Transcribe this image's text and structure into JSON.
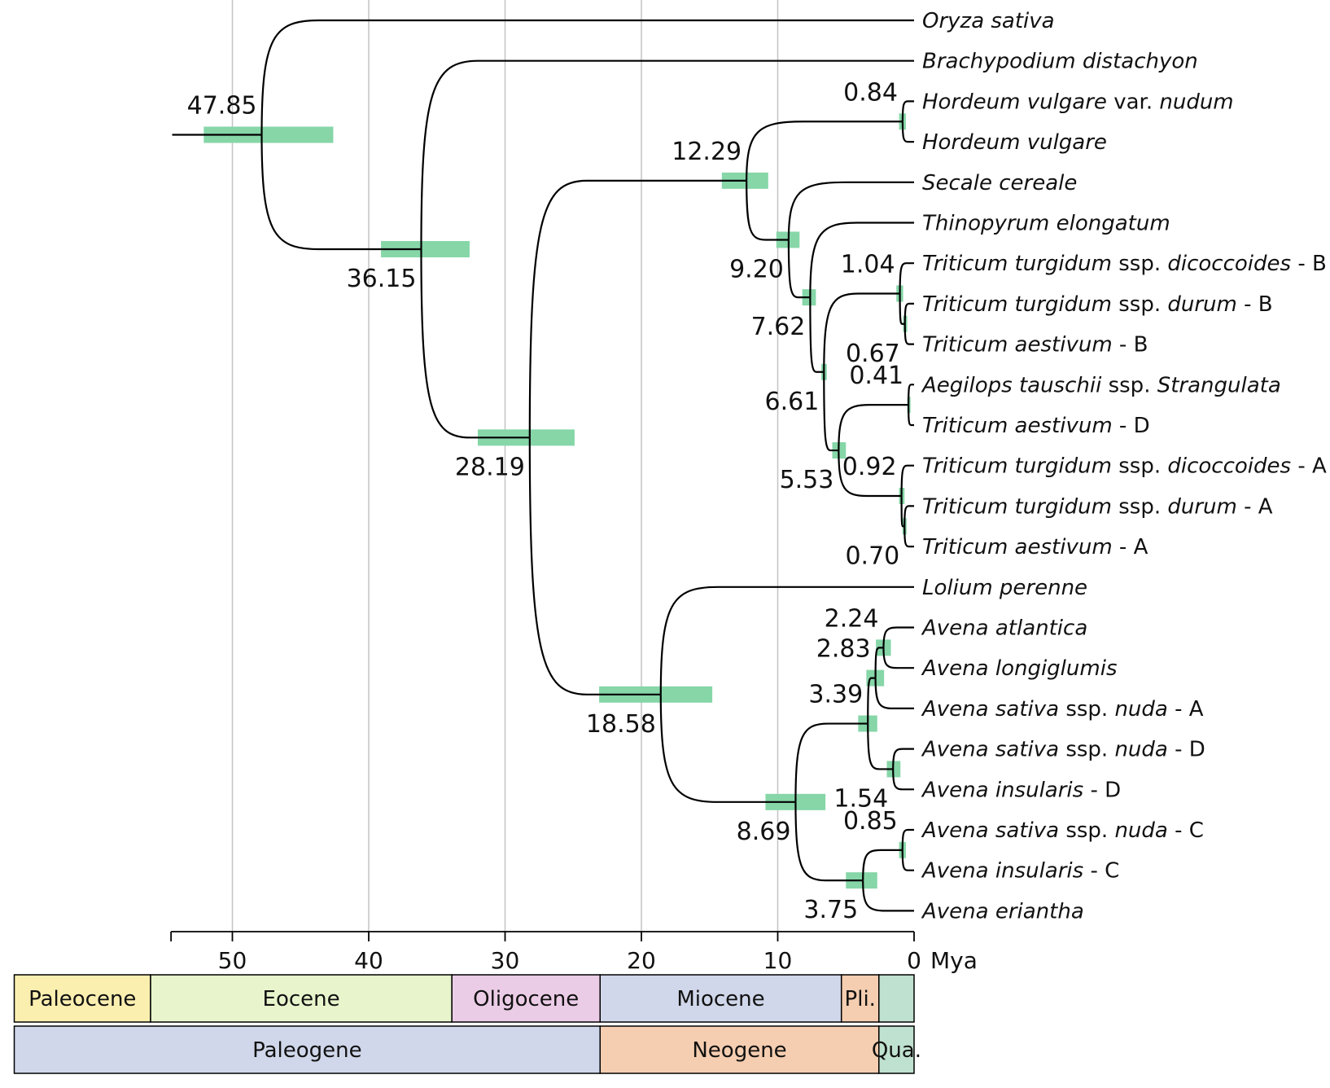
{
  "chart_data": {
    "type": "time-calibrated-phylogeny",
    "axis": {
      "unit": "Mya",
      "ticks": [
        50,
        40,
        30,
        20,
        10,
        0
      ],
      "range": [
        54.5,
        0
      ],
      "gridlines": true
    },
    "taxa": [
      {
        "id": "oryza",
        "parts": [
          [
            "Oryza sativa",
            "i"
          ]
        ]
      },
      {
        "id": "brachy",
        "parts": [
          [
            "Brachypodium distachyon",
            "i"
          ]
        ]
      },
      {
        "id": "hvn",
        "parts": [
          [
            "Hordeum vulgare",
            "i"
          ],
          [
            " var. ",
            "r"
          ],
          [
            "nudum",
            "i"
          ]
        ]
      },
      {
        "id": "hv",
        "parts": [
          [
            "Hordeum vulgare",
            "i"
          ]
        ]
      },
      {
        "id": "secale",
        "parts": [
          [
            "Secale cereale",
            "i"
          ]
        ]
      },
      {
        "id": "thino",
        "parts": [
          [
            "Thinopyrum elongatum",
            "i"
          ]
        ]
      },
      {
        "id": "ttdB",
        "parts": [
          [
            "Triticum turgidum",
            "i"
          ],
          [
            " ssp. ",
            "r"
          ],
          [
            "dicoccoides",
            "i"
          ],
          [
            " - B",
            "r"
          ]
        ]
      },
      {
        "id": "ttduB",
        "parts": [
          [
            "Triticum turgidum",
            "i"
          ],
          [
            " ssp. ",
            "r"
          ],
          [
            "durum",
            "i"
          ],
          [
            " - B",
            "r"
          ]
        ]
      },
      {
        "id": "taB",
        "parts": [
          [
            "Triticum aestivum",
            "i"
          ],
          [
            " - B",
            "r"
          ]
        ]
      },
      {
        "id": "aegilops",
        "parts": [
          [
            "Aegilops tauschii",
            "i"
          ],
          [
            " ssp. ",
            "r"
          ],
          [
            "Strangulata",
            "i"
          ]
        ]
      },
      {
        "id": "taD",
        "parts": [
          [
            "Triticum aestivum",
            "i"
          ],
          [
            " - D",
            "r"
          ]
        ]
      },
      {
        "id": "ttdA",
        "parts": [
          [
            "Triticum turgidum",
            "i"
          ],
          [
            " ssp. ",
            "r"
          ],
          [
            "dicoccoides",
            "i"
          ],
          [
            " - A",
            "r"
          ]
        ]
      },
      {
        "id": "ttduA",
        "parts": [
          [
            "Triticum turgidum",
            "i"
          ],
          [
            " ssp. ",
            "r"
          ],
          [
            "durum",
            "i"
          ],
          [
            " - A",
            "r"
          ]
        ]
      },
      {
        "id": "taA",
        "parts": [
          [
            "Triticum aestivum",
            "i"
          ],
          [
            " - A",
            "r"
          ]
        ]
      },
      {
        "id": "lolium",
        "parts": [
          [
            "Lolium perenne",
            "i"
          ]
        ]
      },
      {
        "id": "aatl",
        "parts": [
          [
            "Avena atlantica",
            "i"
          ]
        ]
      },
      {
        "id": "along",
        "parts": [
          [
            "Avena longiglumis",
            "i"
          ]
        ]
      },
      {
        "id": "asnA",
        "parts": [
          [
            "Avena sativa",
            "i"
          ],
          [
            " ssp. ",
            "r"
          ],
          [
            "nuda",
            "i"
          ],
          [
            " - A",
            "r"
          ]
        ]
      },
      {
        "id": "asnD",
        "parts": [
          [
            "Avena sativa",
            "i"
          ],
          [
            " ssp. ",
            "r"
          ],
          [
            "nuda",
            "i"
          ],
          [
            " - D",
            "r"
          ]
        ]
      },
      {
        "id": "ainsD",
        "parts": [
          [
            "Avena insularis",
            "i"
          ],
          [
            " - D",
            "r"
          ]
        ]
      },
      {
        "id": "asnC",
        "parts": [
          [
            "Avena sativa",
            "i"
          ],
          [
            " ssp. ",
            "r"
          ],
          [
            "nuda",
            "i"
          ],
          [
            " - C",
            "r"
          ]
        ]
      },
      {
        "id": "ainsC",
        "parts": [
          [
            "Avena insularis",
            "i"
          ],
          [
            " - C",
            "r"
          ]
        ]
      },
      {
        "id": "aeri",
        "parts": [
          [
            "Avena eriantha",
            "i"
          ]
        ]
      }
    ],
    "nodes": [
      {
        "id": "n01",
        "age": 47.85,
        "label": "47.85",
        "hpd": [
          52.1,
          42.6
        ],
        "children": [
          "oryza",
          "n02"
        ],
        "lp": "above-left"
      },
      {
        "id": "n02",
        "age": 36.15,
        "label": "36.15",
        "hpd": [
          39.1,
          32.6
        ],
        "children": [
          "brachy",
          "n03"
        ],
        "lp": "below-left"
      },
      {
        "id": "n03",
        "age": 28.19,
        "label": "28.19",
        "hpd": [
          32.0,
          24.9
        ],
        "children": [
          "n04",
          "n16"
        ],
        "lp": "below-left"
      },
      {
        "id": "n04",
        "age": 12.29,
        "label": "12.29",
        "hpd": [
          14.1,
          10.7
        ],
        "children": [
          "n05",
          "n06"
        ],
        "lp": "above-left"
      },
      {
        "id": "n05",
        "age": 0.84,
        "label": "0.84",
        "hpd": [
          1.1,
          0.6
        ],
        "children": [
          "hvn",
          "hv"
        ],
        "lp": "above-left"
      },
      {
        "id": "n06",
        "age": 9.2,
        "label": "9.20",
        "hpd": [
          10.1,
          8.4
        ],
        "children": [
          "secale",
          "n07"
        ],
        "lp": "below-left"
      },
      {
        "id": "n07",
        "age": 7.62,
        "label": "7.62",
        "hpd": [
          8.2,
          7.2
        ],
        "children": [
          "thino",
          "n08"
        ],
        "lp": "below-left"
      },
      {
        "id": "n08",
        "age": 6.61,
        "label": "6.61",
        "hpd": [
          6.8,
          6.4
        ],
        "children": [
          "n09",
          "n11"
        ],
        "lp": "below-left"
      },
      {
        "id": "n09",
        "age": 1.04,
        "label": "1.04",
        "hpd": [
          1.3,
          0.8
        ],
        "children": [
          "ttdB",
          "n10"
        ],
        "lp": "above-left"
      },
      {
        "id": "n10",
        "age": 0.67,
        "label": "0.67",
        "hpd": [
          0.8,
          0.5
        ],
        "children": [
          "ttduB",
          "taB"
        ],
        "lp": "below-left"
      },
      {
        "id": "n11",
        "age": 5.53,
        "label": "5.53",
        "hpd": [
          6.0,
          5.0
        ],
        "children": [
          "n12",
          "n13"
        ],
        "lp": "below-left"
      },
      {
        "id": "n12",
        "age": 0.41,
        "label": "0.41",
        "hpd": [
          0.5,
          0.3
        ],
        "children": [
          "aegilops",
          "taD"
        ],
        "lp": "above-left"
      },
      {
        "id": "n13",
        "age": 0.92,
        "label": "0.92",
        "hpd": [
          1.1,
          0.7
        ],
        "children": [
          "ttdA",
          "n14"
        ],
        "lp": "above-left"
      },
      {
        "id": "n14",
        "age": 0.7,
        "label": "0.70",
        "hpd": [
          0.85,
          0.55
        ],
        "children": [
          "ttduA",
          "taA"
        ],
        "lp": "below-left"
      },
      {
        "id": "n16",
        "age": 18.58,
        "label": "18.58",
        "hpd": [
          23.1,
          14.8
        ],
        "children": [
          "lolium",
          "n17"
        ],
        "lp": "below-left"
      },
      {
        "id": "n17",
        "age": 8.69,
        "label": "8.69",
        "hpd": [
          10.9,
          6.5
        ],
        "children": [
          "n18",
          "n22"
        ],
        "lp": "below-left"
      },
      {
        "id": "n18",
        "age": 3.39,
        "label": "3.39",
        "hpd": [
          4.1,
          2.7
        ],
        "children": [
          "n19",
          "n21"
        ],
        "lp": "above-left"
      },
      {
        "id": "n19",
        "age": 2.83,
        "label": "2.83",
        "hpd": [
          3.5,
          2.2
        ],
        "children": [
          "n20",
          "asnA"
        ],
        "lp": "above-left"
      },
      {
        "id": "n20",
        "age": 2.24,
        "label": "2.24",
        "hpd": [
          2.8,
          1.7
        ],
        "children": [
          "aatl",
          "along"
        ],
        "lp": "above-left"
      },
      {
        "id": "n21",
        "age": 1.54,
        "label": "1.54",
        "hpd": [
          2.0,
          1.0
        ],
        "children": [
          "asnD",
          "ainsD"
        ],
        "lp": "below-left"
      },
      {
        "id": "n22",
        "age": 3.75,
        "label": "3.75",
        "hpd": [
          5.0,
          2.7
        ],
        "children": [
          "n23",
          "aeri"
        ],
        "lp": "below-left"
      },
      {
        "id": "n23",
        "age": 0.85,
        "label": "0.85",
        "hpd": [
          1.1,
          0.6
        ],
        "children": [
          "asnC",
          "ainsC"
        ],
        "lp": "above-left"
      }
    ],
    "epochs": [
      {
        "label": "Paleocene",
        "start": 66,
        "end": 56.0,
        "color": "#fbefb0"
      },
      {
        "label": "Eocene",
        "start": 56.0,
        "end": 33.9,
        "color": "#e8f4cc"
      },
      {
        "label": "Oligocene",
        "start": 33.9,
        "end": 23.03,
        "color": "#ebcce6"
      },
      {
        "label": "Miocene",
        "start": 23.03,
        "end": 5.33,
        "color": "#d0d7ea"
      },
      {
        "label": "Pli.",
        "start": 5.33,
        "end": 2.58,
        "color": "#f5cdb0"
      },
      {
        "label": "",
        "start": 2.58,
        "end": 0,
        "color": "#bfe1cf"
      }
    ],
    "periods": [
      {
        "label": "Paleogene",
        "start": 66,
        "end": 23.03,
        "color": "#d0d7ea"
      },
      {
        "label": "Neogene",
        "start": 23.03,
        "end": 2.58,
        "color": "#f5cdb0"
      },
      {
        "label": "Qua.",
        "start": 2.58,
        "end": 0,
        "color": "#bfe1cf"
      }
    ]
  }
}
